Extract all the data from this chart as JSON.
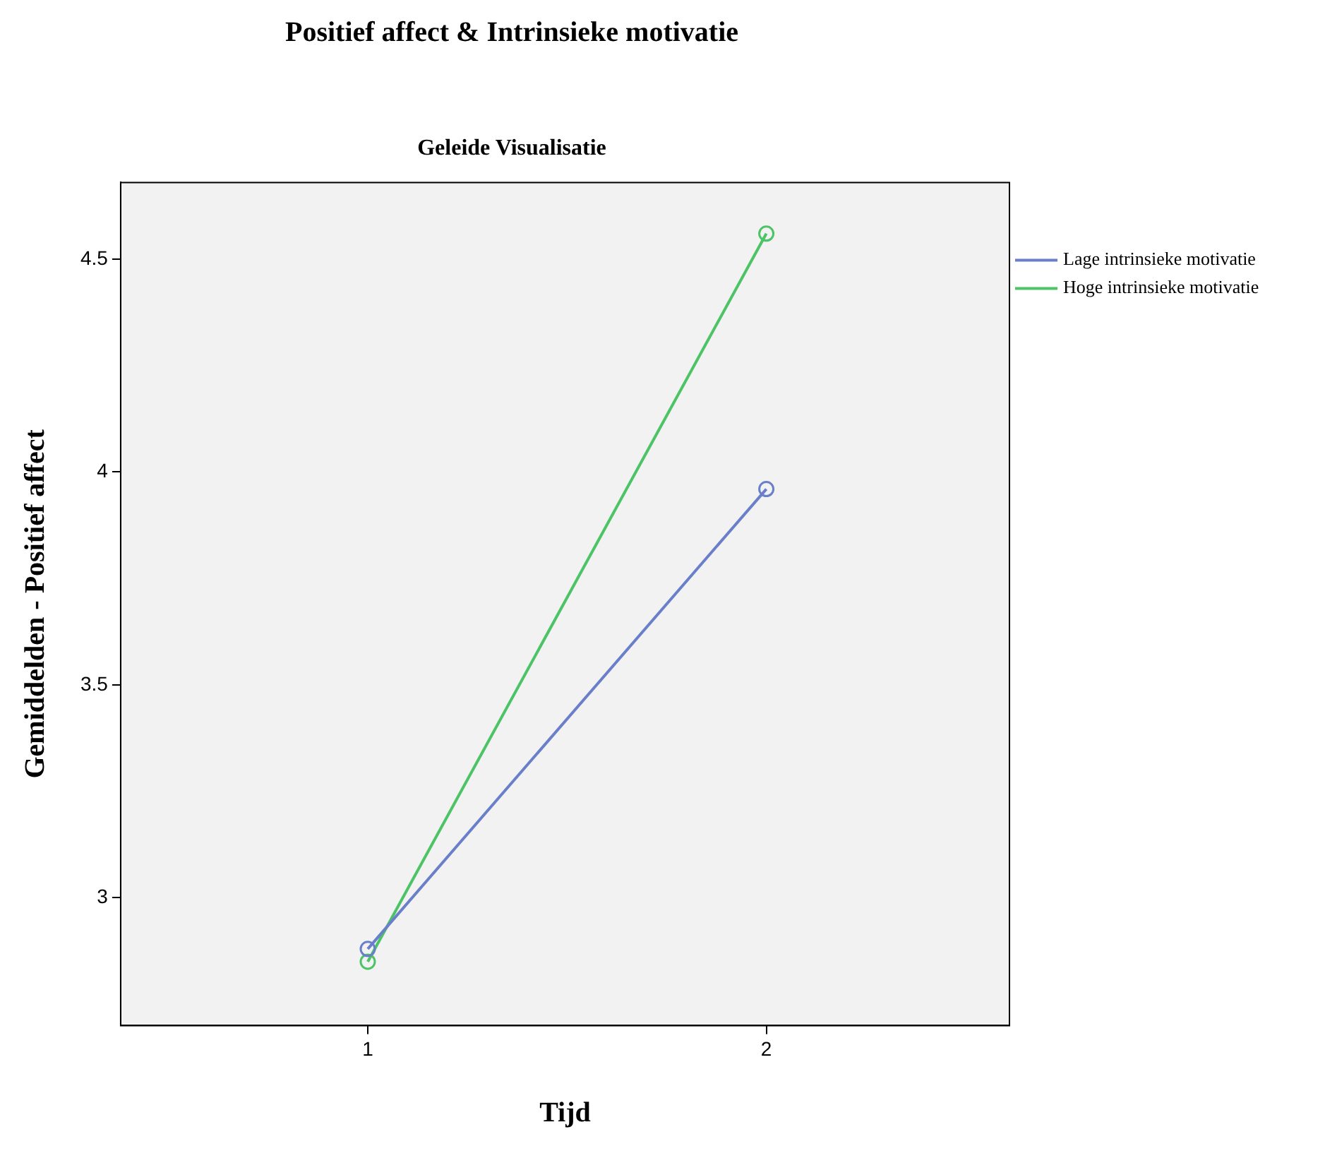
{
  "chart_data": {
    "type": "line",
    "title": "Positief affect & Intrinsieke motivatie",
    "subtitle": "Geleide Visualisatie",
    "xlabel": "Tijd",
    "ylabel": "Gemiddelden - Positief affect",
    "x": [
      1,
      2
    ],
    "xlim": [
      0.38,
      2.61
    ],
    "xticks": [
      1,
      2
    ],
    "ylim": [
      2.7,
      4.68
    ],
    "yticks": [
      3,
      3.5,
      4,
      4.5
    ],
    "series": [
      {
        "name": "Lage intrinsieke motivatie",
        "color": "#6a7fc9",
        "values": [
          2.88,
          3.96
        ]
      },
      {
        "name": "Hoge intrinsieke motivatie",
        "color": "#4cc466",
        "values": [
          2.85,
          4.56
        ]
      }
    ],
    "marker": "circle",
    "line_style": "solid",
    "grid": false,
    "legend": "top right"
  }
}
